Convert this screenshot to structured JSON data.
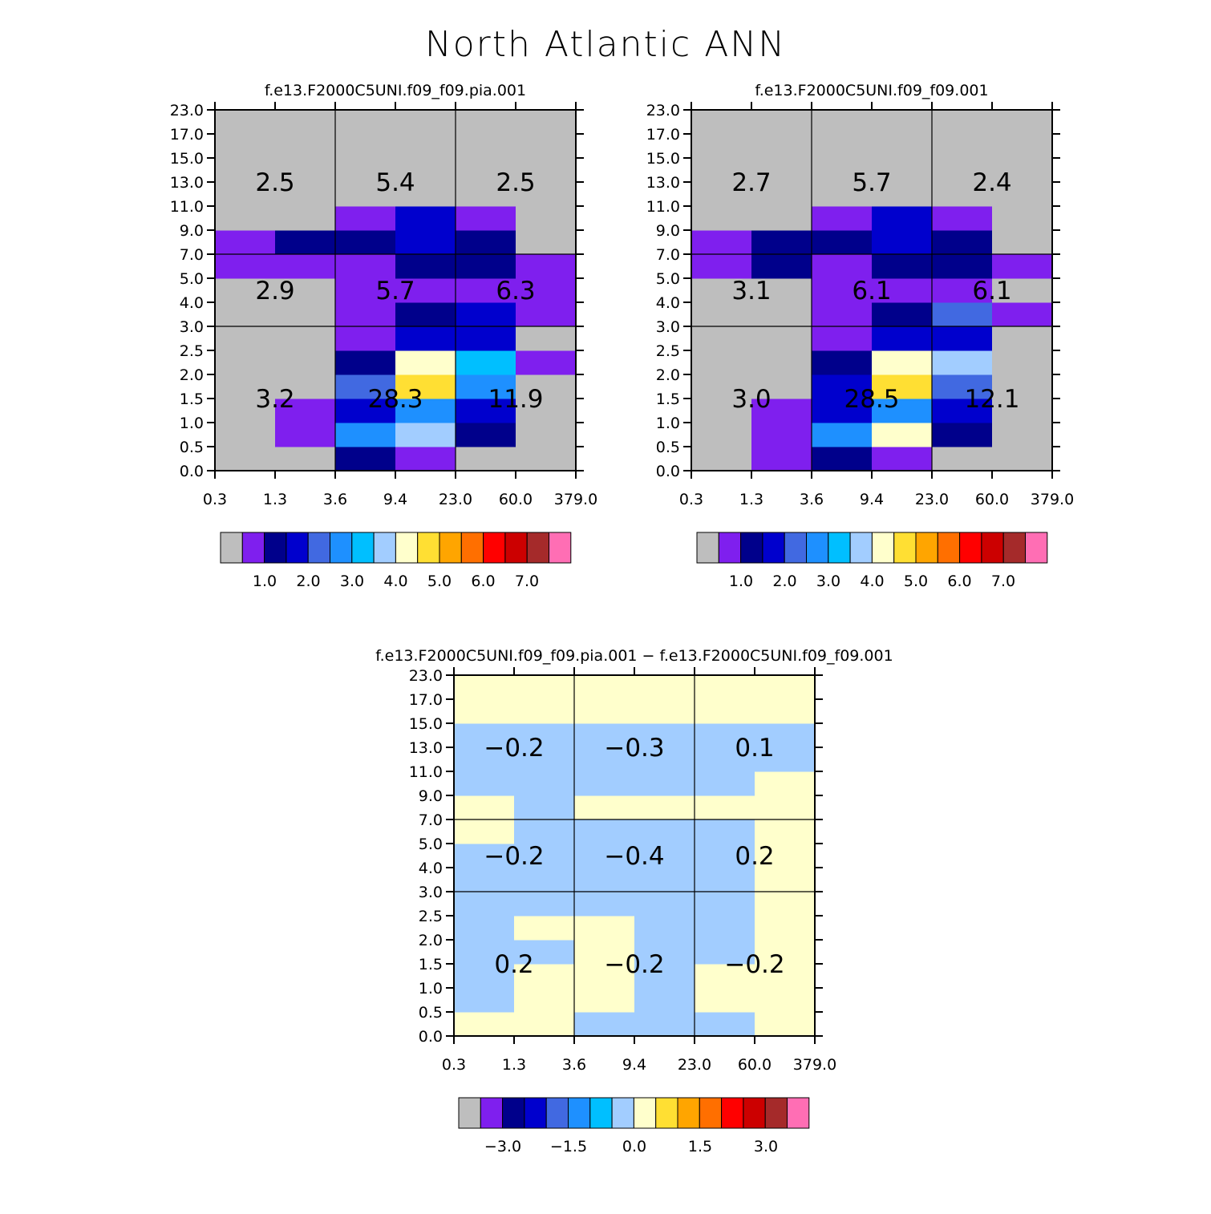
{
  "title": "North Atlantic ANN",
  "colors": {
    "palette": [
      "#bebebe",
      "#7f1fee",
      "#00008b",
      "#0000cd",
      "#4169e1",
      "#1e90ff",
      "#00bfff",
      "#a2cdff",
      "#ffffcc",
      "#ffdf33",
      "#ffa500",
      "#ff6f00",
      "#ff0000",
      "#cc0000",
      "#a52a2a",
      "#ff6eb4"
    ],
    "grid_line": "#000000",
    "axis": "#000000"
  },
  "chart_data": [
    {
      "type": "heatmap",
      "title": "f.e13.F2000C5UNI.f09_f09.pia.001",
      "x_ticks": [
        "0.3",
        "1.3",
        "3.6",
        "9.4",
        "23.0",
        "60.0",
        "379.0"
      ],
      "y_ticks": [
        "0.0",
        "0.5",
        "1.0",
        "1.5",
        "2.0",
        "2.5",
        "3.0",
        "4.0",
        "5.0",
        "7.0",
        "9.0",
        "11.0",
        "13.0",
        "15.0",
        "17.0",
        "23.0"
      ],
      "cells": [
        [
          0,
          0,
          2,
          1,
          0,
          0
        ],
        [
          0,
          1,
          5,
          7,
          2,
          0
        ],
        [
          0,
          1,
          3,
          5,
          3,
          0
        ],
        [
          0,
          0,
          4,
          9,
          5,
          0
        ],
        [
          0,
          0,
          2,
          8,
          6,
          1
        ],
        [
          0,
          0,
          1,
          3,
          3,
          0
        ],
        [
          0,
          0,
          1,
          2,
          3,
          1
        ],
        [
          0,
          0,
          1,
          1,
          1,
          1
        ],
        [
          1,
          1,
          1,
          2,
          2,
          1
        ],
        [
          1,
          2,
          2,
          3,
          2,
          0
        ],
        [
          0,
          0,
          1,
          3,
          1,
          0
        ],
        [
          0,
          0,
          0,
          0,
          0,
          0
        ],
        [
          0,
          0,
          0,
          0,
          0,
          0
        ],
        [
          0,
          0,
          0,
          0,
          0,
          0
        ],
        [
          0,
          0,
          0,
          0,
          0,
          0
        ]
      ],
      "region_labels": [
        {
          "text": "2.5",
          "col": 0,
          "row": "high"
        },
        {
          "text": "5.4",
          "col": 1,
          "row": "high"
        },
        {
          "text": "2.5",
          "col": 2,
          "row": "high"
        },
        {
          "text": "2.9",
          "col": 0,
          "row": "mid"
        },
        {
          "text": "5.7",
          "col": 1,
          "row": "mid"
        },
        {
          "text": "6.3",
          "col": 2,
          "row": "mid"
        },
        {
          "text": "3.2",
          "col": 0,
          "row": "low"
        },
        {
          "text": "28.3",
          "col": 1,
          "row": "low"
        },
        {
          "text": "11.9",
          "col": 2,
          "row": "low"
        }
      ],
      "colorbar_labels": [
        "1.0",
        "2.0",
        "3.0",
        "4.0",
        "5.0",
        "6.0",
        "7.0"
      ]
    },
    {
      "type": "heatmap",
      "title": "f.e13.F2000C5UNI.f09_f09.001",
      "x_ticks": [
        "0.3",
        "1.3",
        "3.6",
        "9.4",
        "23.0",
        "60.0",
        "379.0"
      ],
      "y_ticks": [
        "0.0",
        "0.5",
        "1.0",
        "1.5",
        "2.0",
        "2.5",
        "3.0",
        "4.0",
        "5.0",
        "7.0",
        "9.0",
        "11.0",
        "13.0",
        "15.0",
        "17.0",
        "23.0"
      ],
      "cells": [
        [
          0,
          1,
          2,
          1,
          0,
          0
        ],
        [
          0,
          1,
          5,
          8,
          2,
          0
        ],
        [
          0,
          1,
          3,
          5,
          3,
          0
        ],
        [
          0,
          0,
          3,
          9,
          4,
          0
        ],
        [
          0,
          0,
          2,
          8,
          7,
          0
        ],
        [
          0,
          0,
          1,
          3,
          3,
          0
        ],
        [
          0,
          0,
          1,
          2,
          4,
          1
        ],
        [
          0,
          0,
          1,
          1,
          1,
          0
        ],
        [
          1,
          2,
          1,
          2,
          2,
          1
        ],
        [
          1,
          2,
          2,
          3,
          2,
          0
        ],
        [
          0,
          0,
          1,
          3,
          1,
          0
        ],
        [
          0,
          0,
          0,
          0,
          0,
          0
        ],
        [
          0,
          0,
          0,
          0,
          0,
          0
        ],
        [
          0,
          0,
          0,
          0,
          0,
          0
        ],
        [
          0,
          0,
          0,
          0,
          0,
          0
        ]
      ],
      "region_labels": [
        {
          "text": "2.7",
          "col": 0,
          "row": "high"
        },
        {
          "text": "5.7",
          "col": 1,
          "row": "high"
        },
        {
          "text": "2.4",
          "col": 2,
          "row": "high"
        },
        {
          "text": "3.1",
          "col": 0,
          "row": "mid"
        },
        {
          "text": "6.1",
          "col": 1,
          "row": "mid"
        },
        {
          "text": "6.1",
          "col": 2,
          "row": "mid"
        },
        {
          "text": "3.0",
          "col": 0,
          "row": "low"
        },
        {
          "text": "28.5",
          "col": 1,
          "row": "low"
        },
        {
          "text": "12.1",
          "col": 2,
          "row": "low"
        }
      ],
      "colorbar_labels": [
        "1.0",
        "2.0",
        "3.0",
        "4.0",
        "5.0",
        "6.0",
        "7.0"
      ]
    },
    {
      "type": "heatmap",
      "title": "f.e13.F2000C5UNI.f09_f09.pia.001 − f.e13.F2000C5UNI.f09_f09.001",
      "x_ticks": [
        "0.3",
        "1.3",
        "3.6",
        "9.4",
        "23.0",
        "60.0",
        "379.0"
      ],
      "y_ticks": [
        "0.0",
        "0.5",
        "1.0",
        "1.5",
        "2.0",
        "2.5",
        "3.0",
        "4.0",
        "5.0",
        "7.0",
        "9.0",
        "11.0",
        "13.0",
        "15.0",
        "17.0",
        "23.0"
      ],
      "cells": [
        [
          8,
          8,
          7,
          7,
          7,
          8
        ],
        [
          7,
          8,
          8,
          7,
          8,
          8
        ],
        [
          7,
          8,
          8,
          7,
          8,
          8
        ],
        [
          7,
          7,
          8,
          7,
          7,
          8
        ],
        [
          7,
          8,
          8,
          7,
          7,
          8
        ],
        [
          7,
          7,
          7,
          7,
          7,
          8
        ],
        [
          7,
          7,
          7,
          7,
          7,
          8
        ],
        [
          7,
          7,
          7,
          7,
          7,
          8
        ],
        [
          8,
          7,
          7,
          7,
          7,
          8
        ],
        [
          8,
          7,
          8,
          8,
          8,
          8
        ],
        [
          7,
          7,
          7,
          7,
          7,
          8
        ],
        [
          7,
          7,
          7,
          7,
          7,
          7
        ],
        [
          7,
          7,
          7,
          7,
          7,
          7
        ],
        [
          8,
          8,
          8,
          8,
          8,
          8
        ],
        [
          8,
          8,
          8,
          8,
          8,
          8
        ]
      ],
      "region_labels": [
        {
          "text": "−0.2",
          "col": 0,
          "row": "high"
        },
        {
          "text": "−0.3",
          "col": 1,
          "row": "high"
        },
        {
          "text": "0.1",
          "col": 2,
          "row": "high"
        },
        {
          "text": "−0.2",
          "col": 0,
          "row": "mid"
        },
        {
          "text": "−0.4",
          "col": 1,
          "row": "mid"
        },
        {
          "text": "0.2",
          "col": 2,
          "row": "mid"
        },
        {
          "text": "0.2",
          "col": 0,
          "row": "low"
        },
        {
          "text": "−0.2",
          "col": 1,
          "row": "low"
        },
        {
          "text": "−0.2",
          "col": 2,
          "row": "low"
        }
      ],
      "colorbar_labels": [
        "−3.0",
        "−1.5",
        "0.0",
        "1.5",
        "3.0"
      ]
    }
  ]
}
